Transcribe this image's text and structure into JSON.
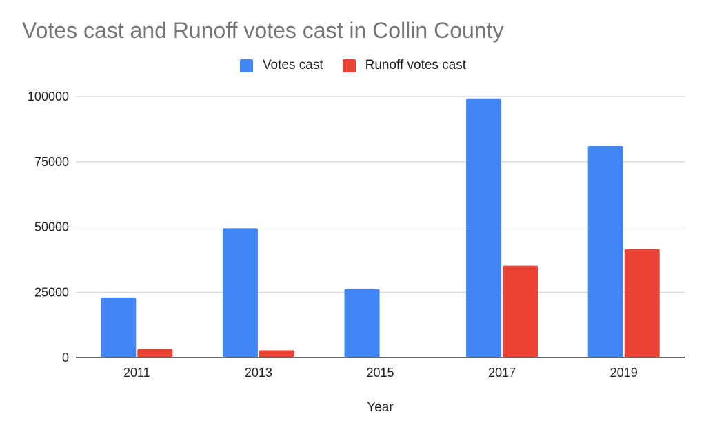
{
  "chart_data": {
    "type": "bar",
    "title": "Votes cast and Runoff votes cast in Collin County",
    "xlabel": "Year",
    "ylabel": "",
    "categories": [
      "2011",
      "2013",
      "2015",
      "2017",
      "2019"
    ],
    "series": [
      {
        "name": "Votes cast",
        "color": "#4285F4",
        "values": [
          23000,
          49500,
          26200,
          99000,
          81000
        ]
      },
      {
        "name": "Runoff votes cast",
        "color": "#EA4335",
        "values": [
          3300,
          2800,
          0,
          35200,
          41500
        ]
      }
    ],
    "ylim": [
      0,
      100000
    ],
    "yticks": [
      0,
      25000,
      50000,
      75000,
      100000
    ],
    "grid": true,
    "legend_position": "top"
  }
}
